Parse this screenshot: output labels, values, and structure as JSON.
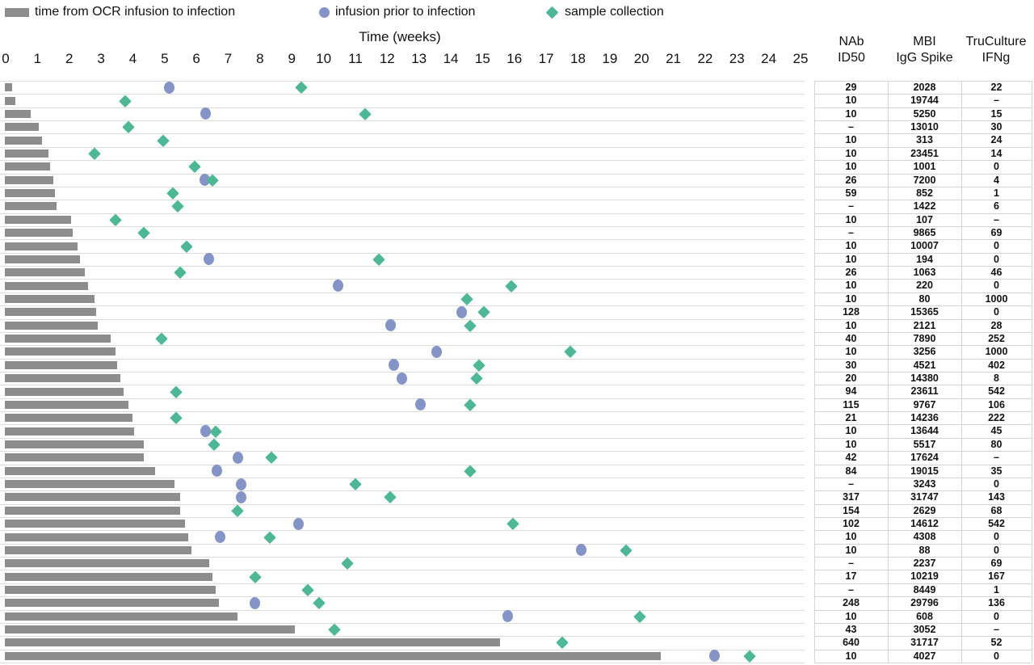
{
  "figure": {
    "legend": [
      {
        "label": "time from OCR infusion to infection",
        "marker": "bar",
        "color": "#8d8d8d"
      },
      {
        "label": "infusion prior to infection",
        "marker": "circle",
        "color": "#8494c6"
      },
      {
        "label": "sample collection",
        "marker": "diamond",
        "color": "#4eb795"
      }
    ],
    "axis_title": "Time (weeks)"
  },
  "table": {
    "headers": [
      {
        "line1": "NAb",
        "line2": "ID50"
      },
      {
        "line1": "MBI",
        "line2": "IgG Spike"
      },
      {
        "line1": "TruCulture",
        "line2": "IFNg"
      }
    ]
  },
  "chart_data": {
    "type": "bar",
    "subtype": "swimmer-plot-with-markers",
    "title": "",
    "xlabel": "Time (weeks)",
    "ylabel": "",
    "xlim": [
      0,
      25
    ],
    "x_ticks": [
      0,
      1,
      2,
      3,
      4,
      5,
      6,
      7,
      8,
      9,
      10,
      11,
      12,
      13,
      14,
      15,
      16,
      17,
      18,
      19,
      20,
      21,
      22,
      23,
      24,
      25
    ],
    "grid": "horizontal row separators on",
    "legend_position": "top",
    "series_meaning": {
      "bar_weeks": "time from OCR infusion to infection (gray bar length, weeks)",
      "infusion_week": "infusion prior to infection (blue circle x, weeks; null if absent)",
      "sample_weeks": "sample collection (green diamond x positions, weeks)"
    },
    "rows": [
      {
        "bar_weeks": 0.2,
        "infusion_week": 5.15,
        "sample_weeks": [
          9.3
        ],
        "nab_id50": "29",
        "mbi_igg_spike": "2028",
        "truculture_ifng": "22"
      },
      {
        "bar_weeks": 0.3,
        "infusion_week": null,
        "sample_weeks": [
          3.75
        ],
        "nab_id50": "10",
        "mbi_igg_spike": "19744",
        "truculture_ifng": "–"
      },
      {
        "bar_weeks": 0.8,
        "infusion_week": 6.3,
        "sample_weeks": [
          11.3
        ],
        "nab_id50": "10",
        "mbi_igg_spike": "5250",
        "truculture_ifng": "15"
      },
      {
        "bar_weeks": 1.05,
        "infusion_week": null,
        "sample_weeks": [
          3.85
        ],
        "nab_id50": "–",
        "mbi_igg_spike": "13010",
        "truculture_ifng": "30"
      },
      {
        "bar_weeks": 1.15,
        "infusion_week": null,
        "sample_weeks": [
          4.95
        ],
        "nab_id50": "10",
        "mbi_igg_spike": "313",
        "truculture_ifng": "24"
      },
      {
        "bar_weeks": 1.35,
        "infusion_week": null,
        "sample_weeks": [
          2.8
        ],
        "nab_id50": "10",
        "mbi_igg_spike": "23451",
        "truculture_ifng": "14"
      },
      {
        "bar_weeks": 1.4,
        "infusion_week": null,
        "sample_weeks": [
          5.95
        ],
        "nab_id50": "10",
        "mbi_igg_spike": "1001",
        "truculture_ifng": "0"
      },
      {
        "bar_weeks": 1.5,
        "infusion_week": 6.25,
        "sample_weeks": [
          6.5
        ],
        "nab_id50": "26",
        "mbi_igg_spike": "7200",
        "truculture_ifng": "4"
      },
      {
        "bar_weeks": 1.55,
        "infusion_week": null,
        "sample_weeks": [
          5.25
        ],
        "nab_id50": "59",
        "mbi_igg_spike": "852",
        "truculture_ifng": "1"
      },
      {
        "bar_weeks": 1.6,
        "infusion_week": null,
        "sample_weeks": [
          5.4
        ],
        "nab_id50": "–",
        "mbi_igg_spike": "1422",
        "truculture_ifng": "6"
      },
      {
        "bar_weeks": 2.05,
        "infusion_week": null,
        "sample_weeks": [
          3.45
        ],
        "nab_id50": "10",
        "mbi_igg_spike": "107",
        "truculture_ifng": "–"
      },
      {
        "bar_weeks": 2.1,
        "infusion_week": null,
        "sample_weeks": [
          4.35
        ],
        "nab_id50": "–",
        "mbi_igg_spike": "9865",
        "truculture_ifng": "69"
      },
      {
        "bar_weeks": 2.25,
        "infusion_week": null,
        "sample_weeks": [
          5.7
        ],
        "nab_id50": "10",
        "mbi_igg_spike": "10007",
        "truculture_ifng": "0"
      },
      {
        "bar_weeks": 2.35,
        "infusion_week": 6.4,
        "sample_weeks": [
          11.75
        ],
        "nab_id50": "10",
        "mbi_igg_spike": "194",
        "truculture_ifng": "0"
      },
      {
        "bar_weeks": 2.5,
        "infusion_week": null,
        "sample_weeks": [
          5.5
        ],
        "nab_id50": "26",
        "mbi_igg_spike": "1063",
        "truculture_ifng": "46"
      },
      {
        "bar_weeks": 2.6,
        "infusion_week": 10.45,
        "sample_weeks": [
          15.9
        ],
        "nab_id50": "10",
        "mbi_igg_spike": "220",
        "truculture_ifng": "0"
      },
      {
        "bar_weeks": 2.8,
        "infusion_week": null,
        "sample_weeks": [
          14.5
        ],
        "nab_id50": "10",
        "mbi_igg_spike": "80",
        "truculture_ifng": "1000"
      },
      {
        "bar_weeks": 2.85,
        "infusion_week": 14.35,
        "sample_weeks": [
          15.05
        ],
        "nab_id50": "128",
        "mbi_igg_spike": "15365",
        "truculture_ifng": "0"
      },
      {
        "bar_weeks": 2.9,
        "infusion_week": 12.1,
        "sample_weeks": [
          14.6
        ],
        "nab_id50": "10",
        "mbi_igg_spike": "2121",
        "truculture_ifng": "28"
      },
      {
        "bar_weeks": 3.3,
        "infusion_week": null,
        "sample_weeks": [
          4.9
        ],
        "nab_id50": "40",
        "mbi_igg_spike": "7890",
        "truculture_ifng": "252"
      },
      {
        "bar_weeks": 3.45,
        "infusion_week": 13.55,
        "sample_weeks": [
          17.75
        ],
        "nab_id50": "10",
        "mbi_igg_spike": "3256",
        "truculture_ifng": "1000"
      },
      {
        "bar_weeks": 3.5,
        "infusion_week": 12.2,
        "sample_weeks": [
          14.9
        ],
        "nab_id50": "30",
        "mbi_igg_spike": "4521",
        "truculture_ifng": "402"
      },
      {
        "bar_weeks": 3.6,
        "infusion_week": 12.45,
        "sample_weeks": [
          14.8
        ],
        "nab_id50": "20",
        "mbi_igg_spike": "14380",
        "truculture_ifng": "8"
      },
      {
        "bar_weeks": 3.7,
        "infusion_week": null,
        "sample_weeks": [
          5.35
        ],
        "nab_id50": "94",
        "mbi_igg_spike": "23611",
        "truculture_ifng": "542"
      },
      {
        "bar_weeks": 3.85,
        "infusion_week": 13.05,
        "sample_weeks": [
          14.6
        ],
        "nab_id50": "115",
        "mbi_igg_spike": "9767",
        "truculture_ifng": "106"
      },
      {
        "bar_weeks": 4.0,
        "infusion_week": null,
        "sample_weeks": [
          5.35
        ],
        "nab_id50": "21",
        "mbi_igg_spike": "14236",
        "truculture_ifng": "222"
      },
      {
        "bar_weeks": 4.05,
        "infusion_week": 6.3,
        "sample_weeks": [
          6.6
        ],
        "nab_id50": "10",
        "mbi_igg_spike": "13644",
        "truculture_ifng": "45"
      },
      {
        "bar_weeks": 4.35,
        "infusion_week": null,
        "sample_weeks": [
          6.55
        ],
        "nab_id50": "10",
        "mbi_igg_spike": "5517",
        "truculture_ifng": "80"
      },
      {
        "bar_weeks": 4.35,
        "infusion_week": 7.3,
        "sample_weeks": [
          8.35
        ],
        "nab_id50": "42",
        "mbi_igg_spike": "17624",
        "truculture_ifng": "–"
      },
      {
        "bar_weeks": 4.7,
        "infusion_week": 6.65,
        "sample_weeks": [
          14.6
        ],
        "nab_id50": "84",
        "mbi_igg_spike": "19015",
        "truculture_ifng": "35"
      },
      {
        "bar_weeks": 5.3,
        "infusion_week": 7.4,
        "sample_weeks": [
          11.0
        ],
        "nab_id50": "–",
        "mbi_igg_spike": "3243",
        "truculture_ifng": "0"
      },
      {
        "bar_weeks": 5.5,
        "infusion_week": 7.4,
        "sample_weeks": [
          12.1
        ],
        "nab_id50": "317",
        "mbi_igg_spike": "31747",
        "truculture_ifng": "143"
      },
      {
        "bar_weeks": 5.5,
        "infusion_week": null,
        "sample_weeks": [
          7.3
        ],
        "nab_id50": "154",
        "mbi_igg_spike": "2629",
        "truculture_ifng": "68"
      },
      {
        "bar_weeks": 5.65,
        "infusion_week": 9.2,
        "sample_weeks": [
          15.95
        ],
        "nab_id50": "102",
        "mbi_igg_spike": "14612",
        "truculture_ifng": "542"
      },
      {
        "bar_weeks": 5.75,
        "infusion_week": 6.75,
        "sample_weeks": [
          8.3
        ],
        "nab_id50": "10",
        "mbi_igg_spike": "4308",
        "truculture_ifng": "0"
      },
      {
        "bar_weeks": 5.85,
        "infusion_week": 18.1,
        "sample_weeks": [
          19.5
        ],
        "nab_id50": "10",
        "mbi_igg_spike": "88",
        "truculture_ifng": "0"
      },
      {
        "bar_weeks": 6.4,
        "infusion_week": null,
        "sample_weeks": [
          10.75
        ],
        "nab_id50": "–",
        "mbi_igg_spike": "2237",
        "truculture_ifng": "69"
      },
      {
        "bar_weeks": 6.5,
        "infusion_week": null,
        "sample_weeks": [
          7.85
        ],
        "nab_id50": "17",
        "mbi_igg_spike": "10219",
        "truculture_ifng": "167"
      },
      {
        "bar_weeks": 6.6,
        "infusion_week": null,
        "sample_weeks": [
          9.5
        ],
        "nab_id50": "–",
        "mbi_igg_spike": "8449",
        "truculture_ifng": "1"
      },
      {
        "bar_weeks": 6.7,
        "infusion_week": 7.85,
        "sample_weeks": [
          9.85
        ],
        "nab_id50": "248",
        "mbi_igg_spike": "29796",
        "truculture_ifng": "136"
      },
      {
        "bar_weeks": 7.3,
        "infusion_week": 15.8,
        "sample_weeks": [
          19.95
        ],
        "nab_id50": "10",
        "mbi_igg_spike": "608",
        "truculture_ifng": "0"
      },
      {
        "bar_weeks": 9.1,
        "infusion_week": null,
        "sample_weeks": [
          10.35
        ],
        "nab_id50": "43",
        "mbi_igg_spike": "3052",
        "truculture_ifng": "–"
      },
      {
        "bar_weeks": 15.55,
        "infusion_week": null,
        "sample_weeks": [
          17.5
        ],
        "nab_id50": "640",
        "mbi_igg_spike": "31717",
        "truculture_ifng": "52"
      },
      {
        "bar_weeks": 20.6,
        "infusion_week": 22.3,
        "sample_weeks": [
          23.4
        ],
        "nab_id50": "10",
        "mbi_igg_spike": "4027",
        "truculture_ifng": "0"
      }
    ]
  }
}
